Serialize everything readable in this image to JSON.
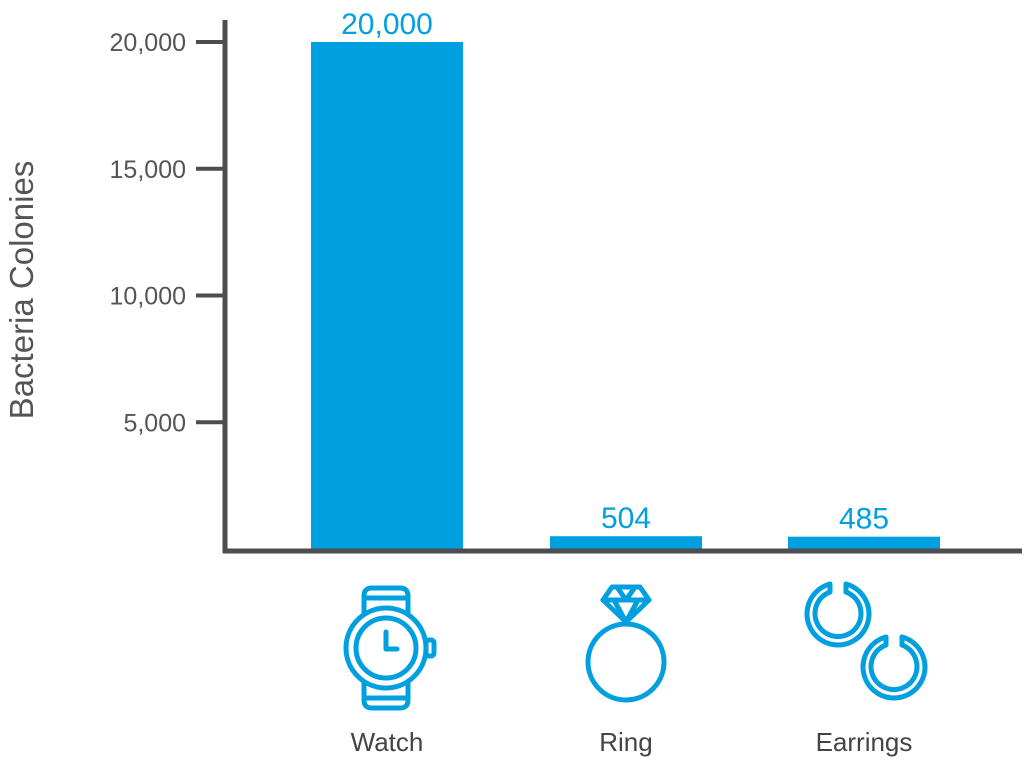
{
  "colors": {
    "bar": "#00a0e0",
    "axis": "#4d4d4f",
    "text": "#555555"
  },
  "chart_data": {
    "type": "bar",
    "categories": [
      "Watch",
      "Ring",
      "Earrings"
    ],
    "values": [
      20000,
      504,
      485
    ],
    "data_labels": [
      "20,000",
      "504",
      "485"
    ],
    "icons": [
      "watch-icon",
      "ring-icon",
      "earrings-icon"
    ],
    "ylabel": "Bacteria Colonies",
    "xlabel": "",
    "yticks": [
      5000,
      10000,
      15000,
      20000
    ],
    "ytick_labels": [
      "5,000",
      "10,000",
      "15,000",
      "20,000"
    ],
    "ylim": [
      0,
      20000
    ],
    "grid": false
  }
}
